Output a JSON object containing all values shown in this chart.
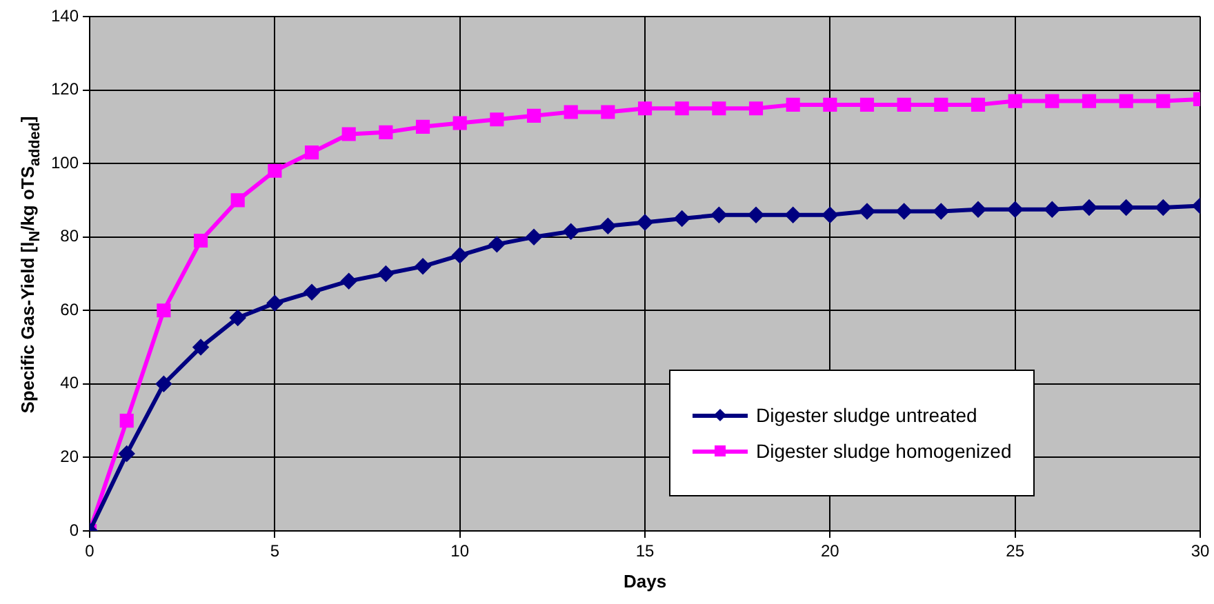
{
  "chart_data": {
    "type": "line",
    "xlabel": "Days",
    "ylabel": "Specific Gas-Yield [l$_{N}$/kg oTS$_{added}$]",
    "x": [
      0,
      1,
      2,
      3,
      4,
      5,
      6,
      7,
      8,
      9,
      10,
      11,
      12,
      13,
      14,
      15,
      16,
      17,
      18,
      19,
      20,
      21,
      22,
      23,
      24,
      25,
      26,
      27,
      28,
      29,
      30
    ],
    "series": [
      {
        "name": "Digester sludge untreated",
        "color": "#000080",
        "marker": "diamond",
        "values": [
          0,
          21,
          40,
          50,
          58,
          62,
          65,
          68,
          70,
          72,
          75,
          78,
          80,
          81.5,
          83,
          84,
          85,
          86,
          86,
          86,
          86,
          87,
          87,
          87,
          87.5,
          87.5,
          87.5,
          88,
          88,
          88,
          88.5
        ]
      },
      {
        "name": "Digester sludge homogenized",
        "color": "#ff00ff",
        "marker": "square",
        "values": [
          0,
          30,
          60,
          79,
          90,
          98,
          103,
          108,
          108.5,
          110,
          111,
          112,
          113,
          114,
          114,
          115,
          115,
          115,
          115,
          116,
          116,
          116,
          116,
          116,
          116,
          117,
          117,
          117,
          117,
          117,
          117.5
        ]
      }
    ],
    "xlim": [
      0,
      30
    ],
    "xticks": [
      0,
      5,
      10,
      15,
      20,
      25,
      30
    ],
    "ylim": [
      0,
      140
    ],
    "yticks": [
      0,
      20,
      40,
      60,
      80,
      100,
      120,
      140
    ],
    "grid": true,
    "legend": "bottom right",
    "line_style": "solid"
  }
}
